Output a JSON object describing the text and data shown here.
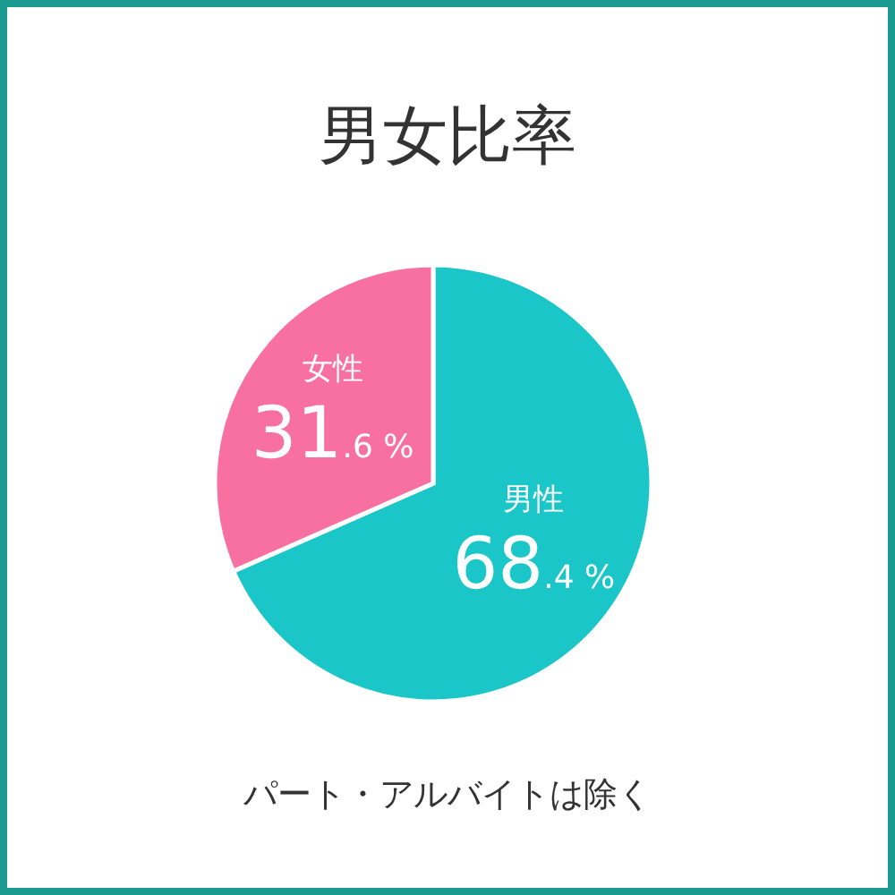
{
  "chart_data": {
    "type": "pie",
    "title": "男女比率",
    "categories": [
      "男性",
      "女性"
    ],
    "values": [
      68.4,
      31.6
    ],
    "value_labels": [
      "68.4 %",
      "31.6 %"
    ],
    "colors": [
      "#1bc6c8",
      "#f870a0"
    ],
    "annotations": [
      "パート・アルバイトは除く"
    ]
  }
}
